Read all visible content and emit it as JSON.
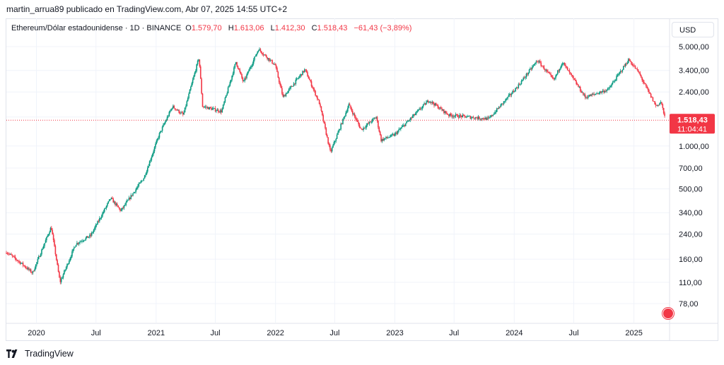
{
  "publisher_line": "martin_arrua89 publicado en TradingView.com, Abr 07, 2025 14:55 UTC+2",
  "legend": {
    "symbol": "Ethereum/Dólar estadounidense · 1D · BINANCE",
    "open_label": "O",
    "open": "1.579,70",
    "high_label": "H",
    "high": "1.613,06",
    "low_label": "L",
    "low": "1.412,30",
    "close_label": "C",
    "close": "1.518,43",
    "change": "−61,43 (−3,89%)"
  },
  "currency_button": "USD",
  "footer_brand": "TradingView",
  "colors": {
    "up": "#089981",
    "down": "#f23645",
    "grid": "#f0f3fa",
    "text": "#131722"
  },
  "chart_data": {
    "type": "candlestick",
    "scale": "log",
    "y_ticks": [
      5000,
      3400,
      2400,
      1600,
      1000,
      700,
      500,
      340,
      240,
      160,
      110,
      78
    ],
    "y_tick_labels": [
      "5.000,00",
      "3.400,00",
      "2.400,00",
      "1.600,00",
      "1.000,00",
      "700,00",
      "500,00",
      "340,00",
      "240,00",
      "160,00",
      "110,00",
      "78,00"
    ],
    "x_range": [
      "2019-10-01",
      "2025-04-07"
    ],
    "x_ticks": [
      {
        "date": "2020-01-01",
        "label": "2020"
      },
      {
        "date": "2020-07-01",
        "label": "Jul"
      },
      {
        "date": "2021-01-01",
        "label": "2021"
      },
      {
        "date": "2021-07-01",
        "label": "Jul"
      },
      {
        "date": "2022-01-01",
        "label": "2022"
      },
      {
        "date": "2022-07-01",
        "label": "Jul"
      },
      {
        "date": "2023-01-01",
        "label": "2023"
      },
      {
        "date": "2023-07-01",
        "label": "Jul"
      },
      {
        "date": "2024-01-01",
        "label": "2024"
      },
      {
        "date": "2024-07-01",
        "label": "Jul"
      },
      {
        "date": "2025-01-01",
        "label": "2025"
      }
    ],
    "price_trend": [
      {
        "date": "2019-10-01",
        "price": 180
      },
      {
        "date": "2019-11-15",
        "price": 150
      },
      {
        "date": "2019-12-20",
        "price": 128
      },
      {
        "date": "2020-02-15",
        "price": 270
      },
      {
        "date": "2020-03-13",
        "price": 110
      },
      {
        "date": "2020-04-30",
        "price": 205
      },
      {
        "date": "2020-06-15",
        "price": 235
      },
      {
        "date": "2020-08-15",
        "price": 430
      },
      {
        "date": "2020-09-15",
        "price": 350
      },
      {
        "date": "2020-11-25",
        "price": 600
      },
      {
        "date": "2021-01-10",
        "price": 1200
      },
      {
        "date": "2021-02-20",
        "price": 1900
      },
      {
        "date": "2021-03-25",
        "price": 1650
      },
      {
        "date": "2021-05-12",
        "price": 4200
      },
      {
        "date": "2021-05-23",
        "price": 1900
      },
      {
        "date": "2021-07-20",
        "price": 1750
      },
      {
        "date": "2021-09-02",
        "price": 3900
      },
      {
        "date": "2021-09-25",
        "price": 2800
      },
      {
        "date": "2021-11-10",
        "price": 4800
      },
      {
        "date": "2021-12-31",
        "price": 3700
      },
      {
        "date": "2022-01-24",
        "price": 2200
      },
      {
        "date": "2022-04-01",
        "price": 3450
      },
      {
        "date": "2022-05-15",
        "price": 2000
      },
      {
        "date": "2022-06-18",
        "price": 900
      },
      {
        "date": "2022-08-13",
        "price": 1950
      },
      {
        "date": "2022-09-20",
        "price": 1300
      },
      {
        "date": "2022-11-05",
        "price": 1600
      },
      {
        "date": "2022-11-20",
        "price": 1100
      },
      {
        "date": "2022-12-31",
        "price": 1200
      },
      {
        "date": "2023-04-15",
        "price": 2100
      },
      {
        "date": "2023-06-15",
        "price": 1650
      },
      {
        "date": "2023-10-15",
        "price": 1550
      },
      {
        "date": "2024-01-10",
        "price": 2600
      },
      {
        "date": "2024-03-12",
        "price": 4000
      },
      {
        "date": "2024-05-01",
        "price": 2900
      },
      {
        "date": "2024-05-27",
        "price": 3900
      },
      {
        "date": "2024-08-05",
        "price": 2200
      },
      {
        "date": "2024-10-15",
        "price": 2500
      },
      {
        "date": "2024-12-16",
        "price": 4050
      },
      {
        "date": "2025-01-15",
        "price": 3300
      },
      {
        "date": "2025-02-03",
        "price": 2700
      },
      {
        "date": "2025-03-10",
        "price": 1900
      },
      {
        "date": "2025-03-25",
        "price": 2050
      },
      {
        "date": "2025-04-07",
        "price": 1518.43
      }
    ],
    "last_price": 1518.43,
    "last_price_label": "1.518,43",
    "countdown": "11:04:41"
  }
}
